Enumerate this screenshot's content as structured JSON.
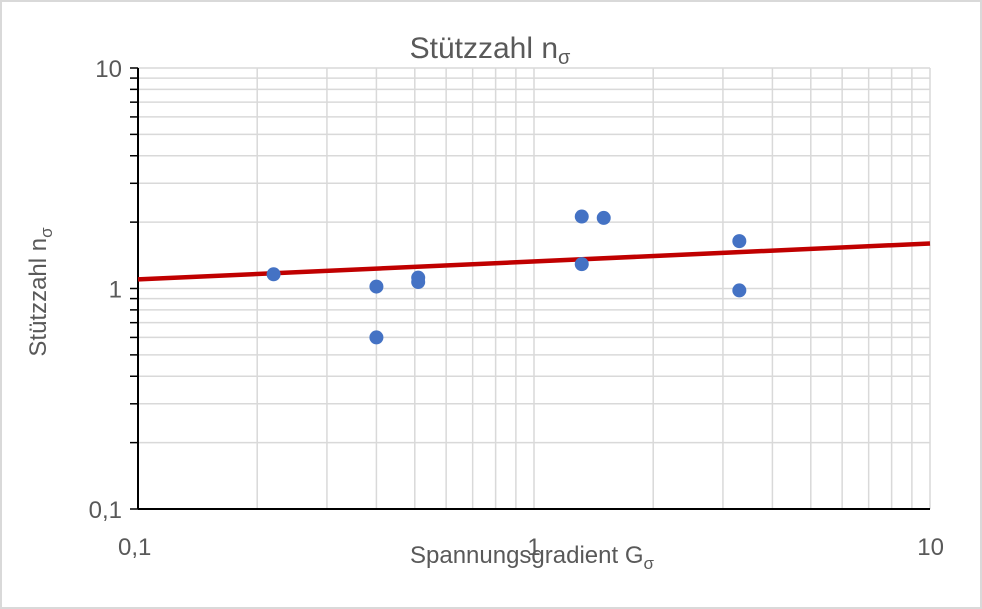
{
  "chart_data": {
    "type": "scatter",
    "title": "Stützzahl n",
    "title_subscript": "σ",
    "xlabel": "Spannungsgradient G",
    "xlabel_subscript": "σ",
    "ylabel": "Stützzahl n",
    "ylabel_subscript": "σ",
    "xscale": "log",
    "yscale": "log",
    "xlim": [
      0.1,
      10
    ],
    "ylim": [
      0.1,
      10
    ],
    "x_ticks": [
      {
        "value": 0.1,
        "label": "0,1"
      },
      {
        "value": 1,
        "label": "1"
      },
      {
        "value": 10,
        "label": "10"
      }
    ],
    "y_ticks": [
      {
        "value": 0.1,
        "label": "0,1"
      },
      {
        "value": 1,
        "label": "1"
      },
      {
        "value": 10,
        "label": "10"
      }
    ],
    "grid": true,
    "legend": "none",
    "series": [
      {
        "type": "scatter",
        "color": "#4472c4",
        "points": [
          {
            "x": 0.22,
            "y": 1.16
          },
          {
            "x": 0.4,
            "y": 1.02
          },
          {
            "x": 0.4,
            "y": 0.6
          },
          {
            "x": 0.51,
            "y": 1.12
          },
          {
            "x": 0.51,
            "y": 1.07
          },
          {
            "x": 1.32,
            "y": 2.12
          },
          {
            "x": 1.32,
            "y": 1.29
          },
          {
            "x": 1.5,
            "y": 2.09
          },
          {
            "x": 3.3,
            "y": 1.64
          },
          {
            "x": 3.3,
            "y": 0.98
          }
        ]
      },
      {
        "type": "line",
        "color": "#c00000",
        "points": [
          {
            "x": 0.1,
            "y": 1.1
          },
          {
            "x": 10,
            "y": 1.6
          }
        ]
      }
    ]
  }
}
